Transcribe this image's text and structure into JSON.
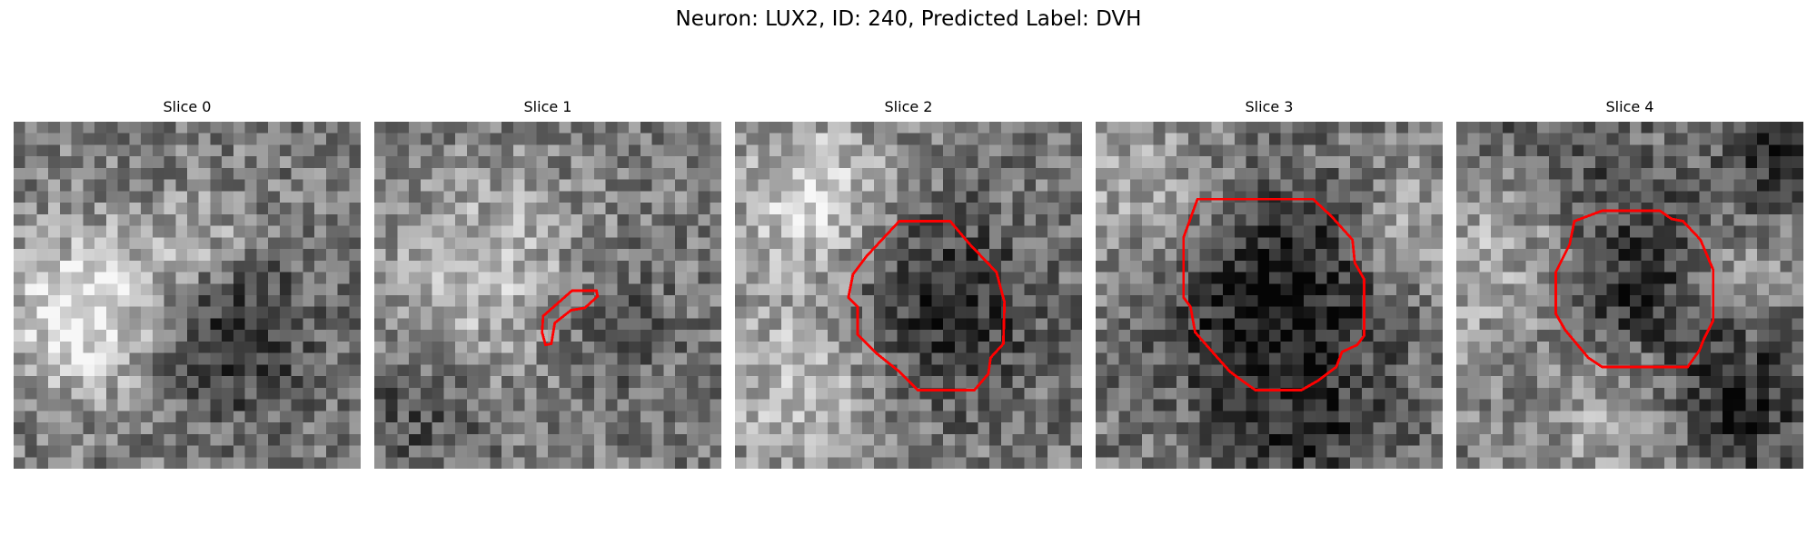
{
  "figure": {
    "title": "Neuron: LUX2, ID: 240, Predicted Label: DVH"
  },
  "panels": [
    {
      "title": "Slice 0",
      "has_roi_outline": false
    },
    {
      "title": "Slice 1",
      "has_roi_outline": true
    },
    {
      "title": "Slice 2",
      "has_roi_outline": true
    },
    {
      "title": "Slice 3",
      "has_roi_outline": true
    },
    {
      "title": "Slice 4",
      "has_roi_outline": true
    }
  ],
  "colors": {
    "outline": "#ff0000",
    "background": "#ffffff"
  }
}
